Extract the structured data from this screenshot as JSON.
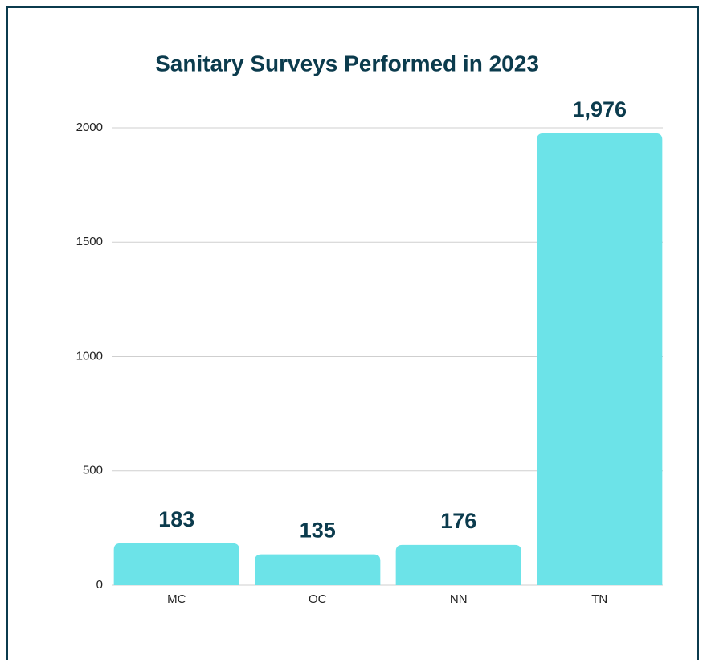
{
  "chart_data": {
    "type": "bar",
    "title": "Sanitary Surveys Performed in 2023",
    "categories": [
      "MC",
      "OC",
      "NN",
      "TN"
    ],
    "values": [
      183,
      135,
      176,
      1976
    ],
    "value_labels": [
      "183",
      "135",
      "176",
      "1,976"
    ],
    "color": "#6ce3e8",
    "ylim": [
      0,
      2000
    ],
    "yticks": [
      0,
      500,
      1000,
      1500,
      2000
    ],
    "grid": true
  }
}
